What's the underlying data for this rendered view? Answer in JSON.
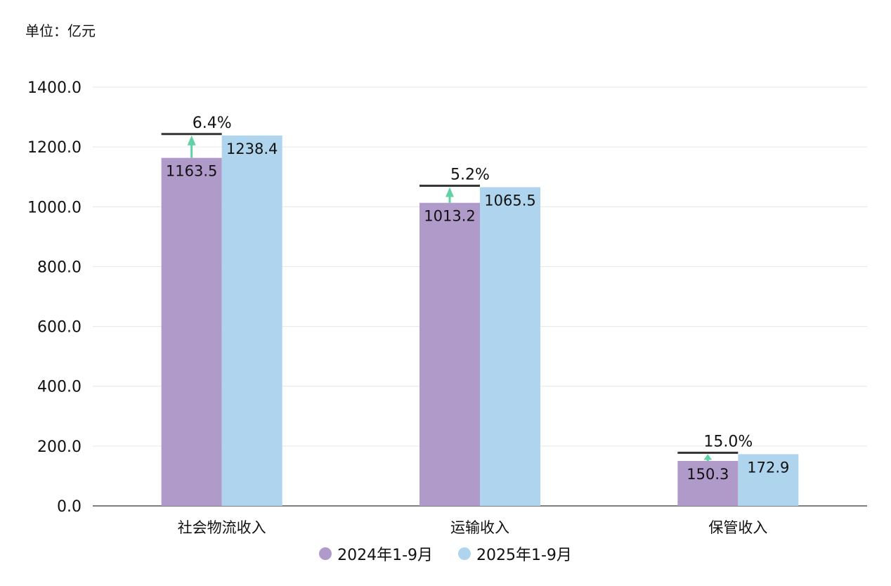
{
  "unit_label": "单位：亿元",
  "colors": {
    "series_2024": "#b09aca",
    "series_2025": "#afd5ee",
    "arrow": "#5fd3a4",
    "target_line": "#333333",
    "grid": "#e6e6e6",
    "axis": "#555555"
  },
  "chart_data": {
    "type": "bar",
    "categories": [
      "社会物流收入",
      "运输收入",
      "保管收入"
    ],
    "series": [
      {
        "name": "2024年1-9月",
        "values": [
          1163.5,
          1013.2,
          150.3
        ]
      },
      {
        "name": "2025年1-9月",
        "values": [
          1238.4,
          1065.5,
          172.9
        ]
      }
    ],
    "value_labels": [
      [
        "1163.5",
        "1013.2",
        "150.3"
      ],
      [
        "1238.4",
        "1065.5",
        "172.9"
      ]
    ],
    "growth_labels": [
      "6.4%",
      "5.2%",
      "15.0%"
    ],
    "y_ticks": [
      "0.0",
      "200.0",
      "400.0",
      "600.0",
      "800.0",
      "1000.0",
      "1200.0",
      "1400.0"
    ],
    "ylim": [
      0,
      1400
    ],
    "grid": true,
    "legend_position": "bottom"
  }
}
